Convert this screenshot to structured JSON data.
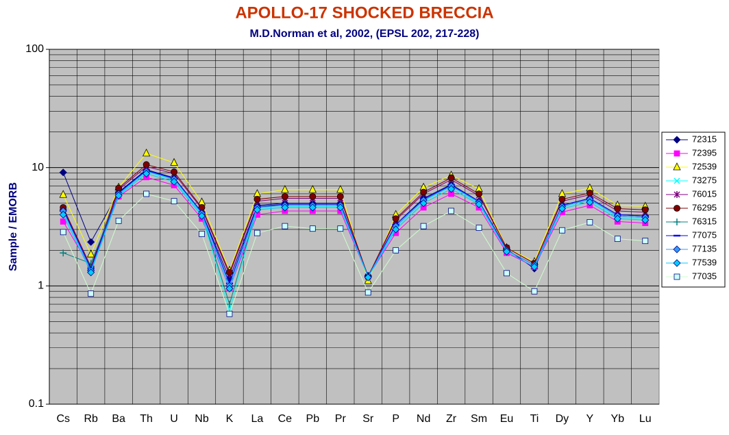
{
  "chart_data": {
    "type": "line",
    "title": "APOLLO-17 SHOCKED BRECCIA",
    "subtitle": "M.D.Norman et al, 2002, (EPSL 202, 217-228)",
    "y_label": "Sample / EMORB",
    "y_scale": "log",
    "ylim": [
      0.1,
      100
    ],
    "yticks": [
      0.1,
      1,
      10,
      100
    ],
    "grid": true,
    "legend_position": "right",
    "categories": [
      "Cs",
      "Rb",
      "Ba",
      "Th",
      "U",
      "Nb",
      "K",
      "La",
      "Ce",
      "Pb",
      "Pr",
      "Sr",
      "P",
      "Nd",
      "Zr",
      "Sm",
      "Eu",
      "Ti",
      "Dy",
      "Y",
      "Yb",
      "Lu"
    ],
    "series": [
      {
        "name": "72315",
        "color": "#000080",
        "line_color": "#000080",
        "marker": "diamond",
        "values": [
          9.1,
          2.35,
          6.2,
          9.6,
          8.2,
          4.2,
          1.15,
          4.8,
          5.0,
          5.0,
          5.0,
          1.22,
          3.3,
          5.5,
          7.2,
          5.2,
          2.05,
          1.4,
          4.8,
          5.5,
          4.0,
          3.9
        ]
      },
      {
        "name": "72395",
        "color": "#ff00ff",
        "line_color": "#ff00ff",
        "marker": "square",
        "values": [
          3.5,
          1.4,
          5.7,
          8.3,
          7.1,
          3.7,
          0.95,
          4.0,
          4.3,
          4.3,
          4.3,
          1.2,
          2.8,
          4.6,
          6.0,
          4.6,
          1.9,
          1.45,
          4.2,
          4.8,
          3.5,
          3.4
        ]
      },
      {
        "name": "72539",
        "color": "#ffff00",
        "line_color": "#ffff00",
        "marker": "triangle",
        "values": [
          5.9,
          1.85,
          6.8,
          13.2,
          11.0,
          5.1,
          1.35,
          6.0,
          6.5,
          6.5,
          6.5,
          1.1,
          4.0,
          6.8,
          8.6,
          6.6,
          2.1,
          1.6,
          6.0,
          6.7,
          4.8,
          4.7
        ]
      },
      {
        "name": "73275",
        "color": "#00ffff",
        "line_color": "#00ffff",
        "marker": "x",
        "values": [
          4.2,
          1.35,
          5.9,
          9.2,
          7.9,
          4.0,
          0.62,
          4.5,
          4.7,
          4.7,
          4.7,
          1.2,
          3.1,
          5.2,
          6.9,
          5.0,
          2.0,
          1.5,
          4.6,
          5.3,
          3.8,
          3.7
        ]
      },
      {
        "name": "76015",
        "color": "#800080",
        "line_color": "#800080",
        "marker": "star",
        "values": [
          4.5,
          1.4,
          6.5,
          10.2,
          8.9,
          4.5,
          1.25,
          5.2,
          5.5,
          5.5,
          5.5,
          1.2,
          3.6,
          6.0,
          7.9,
          5.8,
          2.1,
          1.55,
          5.2,
          5.9,
          4.3,
          4.2
        ]
      },
      {
        "name": "76295",
        "color": "#800000",
        "line_color": "#800000",
        "marker": "circle",
        "values": [
          4.6,
          1.45,
          6.7,
          10.6,
          9.2,
          4.6,
          1.3,
          5.4,
          5.7,
          5.7,
          5.7,
          1.2,
          3.7,
          6.2,
          8.2,
          6.0,
          2.1,
          1.55,
          5.4,
          6.1,
          4.5,
          4.4
        ]
      },
      {
        "name": "76315",
        "color": "#008080",
        "line_color": "#008080",
        "marker": "plus",
        "values": [
          1.9,
          1.55,
          6.0,
          9.4,
          8.1,
          4.1,
          0.7,
          4.6,
          4.9,
          4.9,
          4.9,
          1.2,
          3.2,
          5.3,
          7.0,
          5.1,
          2.0,
          1.5,
          4.7,
          5.4,
          3.9,
          3.8
        ]
      },
      {
        "name": "77075",
        "color": "#0000ff",
        "line_color": "#0000ff",
        "marker": "dash",
        "values": [
          4.4,
          1.4,
          6.1,
          9.5,
          8.1,
          4.2,
          1.05,
          4.7,
          4.9,
          4.9,
          4.9,
          1.2,
          3.3,
          5.4,
          7.1,
          5.2,
          2.0,
          1.5,
          4.8,
          5.5,
          4.0,
          3.9
        ]
      },
      {
        "name": "77135",
        "color": "#3399ff",
        "line_color": "#3399ff",
        "marker": "diamond",
        "values": [
          4.3,
          1.35,
          6.0,
          9.3,
          8.0,
          4.1,
          1.0,
          4.6,
          4.8,
          4.8,
          4.8,
          1.2,
          3.2,
          5.3,
          7.0,
          5.1,
          2.0,
          1.5,
          4.7,
          5.4,
          3.9,
          3.8
        ]
      },
      {
        "name": "77539",
        "color": "#00ccff",
        "line_color": "#00ccff",
        "marker": "diamond",
        "values": [
          4.0,
          1.3,
          5.8,
          8.9,
          7.6,
          3.9,
          0.95,
          4.4,
          4.6,
          4.6,
          4.6,
          1.18,
          3.0,
          5.0,
          6.6,
          4.9,
          1.95,
          1.45,
          4.5,
          5.1,
          3.7,
          3.6
        ]
      },
      {
        "name": "77035",
        "color": "#ccffff",
        "line_color": "#ccffcc",
        "marker": "square",
        "values": [
          2.85,
          0.86,
          3.55,
          6.0,
          5.2,
          2.75,
          0.58,
          2.8,
          3.2,
          3.05,
          3.05,
          0.88,
          2.0,
          3.2,
          4.3,
          3.1,
          1.28,
          0.9,
          2.95,
          3.45,
          2.5,
          2.4
        ]
      }
    ]
  }
}
